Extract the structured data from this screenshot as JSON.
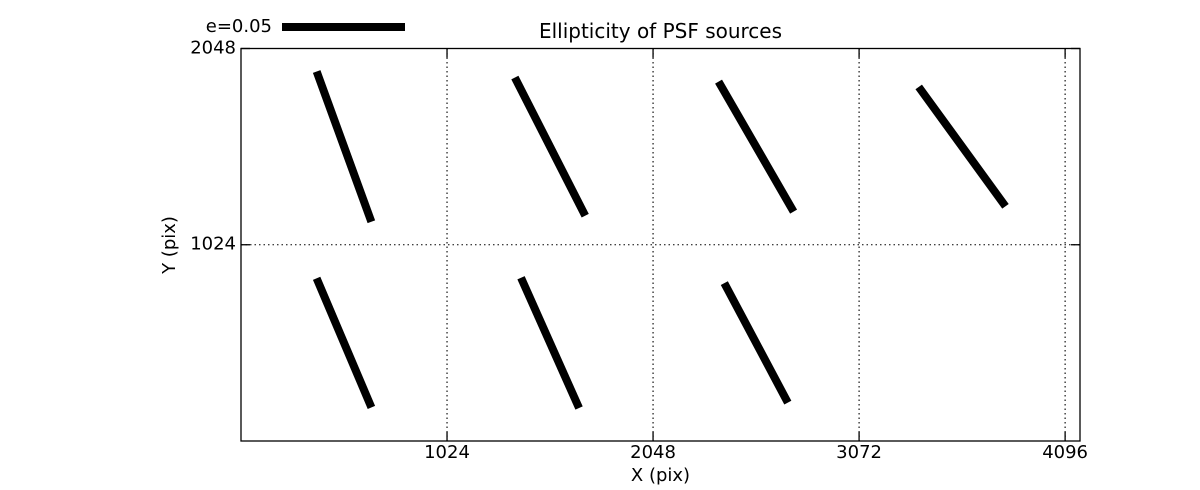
{
  "figure": {
    "title": "Ellipticity of PSF sources",
    "xlabel": "X (pix)",
    "ylabel": "Y (pix)",
    "legend": {
      "label": "e=0.05"
    }
  },
  "chart_data": {
    "type": "scatter",
    "subtype": "ellipticity-whisker-map",
    "title": "Ellipticity of PSF sources",
    "xlabel": "X (pix)",
    "ylabel": "Y (pix)",
    "xlim": [
      0,
      4170
    ],
    "ylim": [
      0,
      2048
    ],
    "xticks": [
      1024,
      2048,
      3072,
      4096
    ],
    "yticks": [
      1024,
      2048
    ],
    "grid": {
      "style": "dotted",
      "x_at": [
        1024,
        2048,
        3072,
        4096
      ],
      "y_at": [
        1024
      ]
    },
    "legend": {
      "label": "e=0.05",
      "e": 0.05,
      "location": "above-axes-upper-left"
    },
    "whisker_color": "#000000",
    "whiskers": [
      {
        "x": 512,
        "y": 1536,
        "e": 0.065,
        "angle_deg": 110
      },
      {
        "x": 1536,
        "y": 1536,
        "e": 0.063,
        "angle_deg": 117
      },
      {
        "x": 2560,
        "y": 1536,
        "e": 0.061,
        "angle_deg": 120
      },
      {
        "x": 3584,
        "y": 1536,
        "e": 0.06,
        "angle_deg": 126
      },
      {
        "x": 512,
        "y": 512,
        "e": 0.057,
        "angle_deg": 113
      },
      {
        "x": 1536,
        "y": 512,
        "e": 0.058,
        "angle_deg": 114
      },
      {
        "x": 2560,
        "y": 512,
        "e": 0.055,
        "angle_deg": 118
      }
    ]
  }
}
